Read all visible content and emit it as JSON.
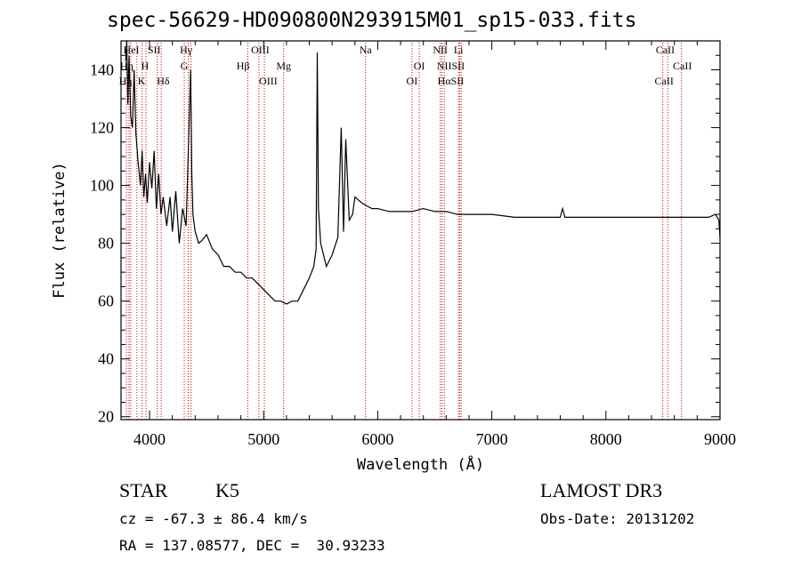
{
  "header": {
    "title": "spec-56629-HD090800N293915M01_sp15-033.fits"
  },
  "footer": {
    "class": "STAR",
    "subclass": "K5",
    "survey": "LAMOST DR3",
    "cz": "cz = -67.3 ± 86.4 km/s",
    "obs_date": "Obs-Date: 20131202",
    "radec": "RA = 137.08577, DEC =  30.93233"
  },
  "chart_data": {
    "type": "line",
    "title": "spec-56629-HD090800N293915M01_sp15-033.fits",
    "xlabel": "Wavelength (Å)",
    "ylabel": "Flux (relative)",
    "xlim": [
      3750,
      9000
    ],
    "ylim": [
      19,
      150
    ],
    "xticks": [
      4000,
      5000,
      6000,
      7000,
      8000,
      9000
    ],
    "yticks": [
      20,
      40,
      60,
      80,
      100,
      120,
      140
    ],
    "grid": false,
    "line_color": "#000000",
    "marker_color": "#cc0000",
    "series": [
      {
        "x": [
          3790,
          3800,
          3810,
          3820,
          3835,
          3850,
          3865,
          3880,
          3900,
          3920,
          3935,
          3950,
          3965,
          3980,
          4000,
          4020,
          4040,
          4060,
          4080,
          4100,
          4120,
          4150,
          4180,
          4200,
          4230,
          4260,
          4290,
          4320,
          4340,
          4360,
          4370,
          4380,
          4400,
          4430,
          4460,
          4500,
          4550,
          4600,
          4650,
          4700,
          4750,
          4800,
          4850,
          4900,
          4950,
          5000,
          5050,
          5100,
          5150,
          5200,
          5250,
          5300,
          5350,
          5400,
          5440,
          5460,
          5470,
          5480,
          5500,
          5550,
          5600,
          5650,
          5680,
          5700,
          5720,
          5750,
          5780,
          5800,
          5830,
          5860,
          5900,
          5950,
          6000,
          6100,
          6200,
          6300,
          6400,
          6500,
          6600,
          6700,
          6800,
          7000,
          7200,
          7400,
          7600,
          7620,
          7640,
          7800,
          8000,
          8200,
          8400,
          8600,
          8800,
          8900,
          8960,
          8990,
          9000
        ],
        "y": [
          143,
          150,
          128,
          145,
          124,
          120,
          140,
          118,
          108,
          100,
          112,
          96,
          104,
          94,
          108,
          99,
          112,
          92,
          104,
          90,
          96,
          86,
          96,
          84,
          98,
          80,
          92,
          86,
          112,
          140,
          104,
          90,
          84,
          80,
          81,
          83,
          78,
          76,
          72,
          72,
          70,
          70,
          68,
          68,
          66,
          64,
          62,
          60,
          60,
          59,
          60,
          60,
          64,
          68,
          72,
          78,
          146,
          92,
          80,
          72,
          76,
          82,
          120,
          84,
          116,
          88,
          90,
          96,
          95,
          94,
          93,
          92,
          92,
          91,
          91,
          91,
          92,
          91,
          91,
          90,
          90,
          90,
          89,
          89,
          89,
          92,
          89,
          89,
          89,
          89,
          89,
          89,
          89,
          89,
          90,
          88,
          82
        ]
      }
    ],
    "lines": [
      {
        "wave": 3798,
        "label": "Hη"
      },
      {
        "wave": 3820,
        "label": "HeI"
      },
      {
        "wave": 3835,
        "label": "Hη"
      },
      {
        "wave": 3889,
        "label": ""
      },
      {
        "wave": 3934,
        "label": "K"
      },
      {
        "wave": 3969,
        "label": "H"
      },
      {
        "wave": 4068,
        "label": "SII"
      },
      {
        "wave": 4102,
        "label": "Hδ"
      },
      {
        "wave": 4304,
        "label": "G"
      },
      {
        "wave": 4340,
        "label": "Hγ"
      },
      {
        "wave": 4363,
        "label": "OIII"
      },
      {
        "wave": 4861,
        "label": "Hβ"
      },
      {
        "wave": 4959,
        "label": "OIII"
      },
      {
        "wave": 5007,
        "label": "OIII"
      },
      {
        "wave": 5175,
        "label": "Mg"
      },
      {
        "wave": 5893,
        "label": "Na"
      },
      {
        "wave": 6300,
        "label": "OI"
      },
      {
        "wave": 6364,
        "label": "OI"
      },
      {
        "wave": 6548,
        "label": "NII"
      },
      {
        "wave": 6563,
        "label": "Hα"
      },
      {
        "wave": 6584,
        "label": "NII"
      },
      {
        "wave": 6708,
        "label": "Li"
      },
      {
        "wave": 6717,
        "label": "SII"
      },
      {
        "wave": 6731,
        "label": "SII"
      },
      {
        "wave": 8498,
        "label": "CaII"
      },
      {
        "wave": 8542,
        "label": "CaII"
      },
      {
        "wave": 8662,
        "label": "CaII"
      }
    ],
    "line_labels": [
      {
        "text": "HeI",
        "wave": 3840,
        "row": 0
      },
      {
        "text": "SII",
        "wave": 4040,
        "row": 0
      },
      {
        "text": "Hγ",
        "wave": 4320,
        "row": 0
      },
      {
        "text": "OIII",
        "wave": 4970,
        "row": 0
      },
      {
        "text": "Na",
        "wave": 5893,
        "row": 0
      },
      {
        "text": "NII",
        "wave": 6548,
        "row": 0
      },
      {
        "text": "Li",
        "wave": 6708,
        "row": 0
      },
      {
        "text": "CaII",
        "wave": 8520,
        "row": 0
      },
      {
        "text": "Hη",
        "wave": 3800,
        "row": 1
      },
      {
        "text": "H",
        "wave": 3960,
        "row": 1
      },
      {
        "text": "G",
        "wave": 4304,
        "row": 1
      },
      {
        "text": "Hβ",
        "wave": 4820,
        "row": 1
      },
      {
        "text": "Mg",
        "wave": 5175,
        "row": 1
      },
      {
        "text": "OI",
        "wave": 6364,
        "row": 1
      },
      {
        "text": "NIISII",
        "wave": 6640,
        "row": 1
      },
      {
        "text": "CaII",
        "wave": 8670,
        "row": 1
      },
      {
        "text": "Hη",
        "wave": 3790,
        "row": 2
      },
      {
        "text": "K",
        "wave": 3930,
        "row": 2
      },
      {
        "text": "Hδ",
        "wave": 4120,
        "row": 2
      },
      {
        "text": "OIII",
        "wave": 5040,
        "row": 2
      },
      {
        "text": "OI",
        "wave": 6300,
        "row": 2
      },
      {
        "text": "HαSII",
        "wave": 6640,
        "row": 2
      },
      {
        "text": "CaII",
        "wave": 8510,
        "row": 2
      }
    ]
  }
}
